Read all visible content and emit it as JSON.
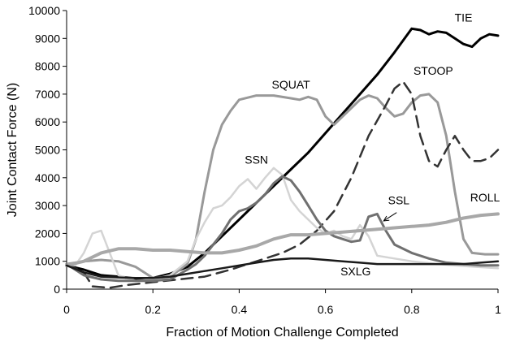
{
  "chart_data": {
    "type": "line",
    "title": "",
    "xlabel": "Fraction of Motion Challenge Completed",
    "ylabel": "Joint Contact Force (N)",
    "xlim": [
      0,
      1
    ],
    "ylim": [
      0,
      10000
    ],
    "xticks": [
      0,
      0.2,
      0.4,
      0.6,
      0.8,
      1
    ],
    "yticks": [
      0,
      1000,
      2000,
      3000,
      4000,
      5000,
      6000,
      7000,
      8000,
      9000,
      10000
    ],
    "xtick_labels": [
      "0",
      "0.2",
      "0.4",
      "0.6",
      "0.8",
      "1"
    ],
    "ytick_labels": [
      "0",
      "1000",
      "2000",
      "3000",
      "4000",
      "5000",
      "6000",
      "7000",
      "8000",
      "9000",
      "10000"
    ],
    "grid": false,
    "legend": "none (direct labels)",
    "series": [
      {
        "name": "TIE",
        "color": "#000000",
        "width": 3,
        "dash": "",
        "points": [
          [
            0,
            850
          ],
          [
            0.04,
            700
          ],
          [
            0.08,
            500
          ],
          [
            0.12,
            450
          ],
          [
            0.16,
            380
          ],
          [
            0.2,
            400
          ],
          [
            0.24,
            550
          ],
          [
            0.28,
            800
          ],
          [
            0.32,
            1300
          ],
          [
            0.36,
            1900
          ],
          [
            0.4,
            2500
          ],
          [
            0.44,
            3100
          ],
          [
            0.48,
            3700
          ],
          [
            0.52,
            4300
          ],
          [
            0.56,
            4900
          ],
          [
            0.6,
            5600
          ],
          [
            0.64,
            6300
          ],
          [
            0.68,
            7000
          ],
          [
            0.72,
            7700
          ],
          [
            0.76,
            8500
          ],
          [
            0.8,
            9350
          ],
          [
            0.82,
            9300
          ],
          [
            0.84,
            9150
          ],
          [
            0.86,
            9250
          ],
          [
            0.88,
            9200
          ],
          [
            0.9,
            9000
          ],
          [
            0.92,
            8800
          ],
          [
            0.94,
            8700
          ],
          [
            0.96,
            9000
          ],
          [
            0.98,
            9150
          ],
          [
            1,
            9100
          ]
        ]
      },
      {
        "name": "SQUAT",
        "color": "#999999",
        "width": 3,
        "dash": "",
        "points": [
          [
            0,
            900
          ],
          [
            0.04,
            1000
          ],
          [
            0.08,
            1050
          ],
          [
            0.12,
            1000
          ],
          [
            0.16,
            800
          ],
          [
            0.2,
            400
          ],
          [
            0.24,
            450
          ],
          [
            0.28,
            900
          ],
          [
            0.3,
            1800
          ],
          [
            0.32,
            3500
          ],
          [
            0.34,
            5000
          ],
          [
            0.36,
            5900
          ],
          [
            0.38,
            6400
          ],
          [
            0.4,
            6800
          ],
          [
            0.44,
            6950
          ],
          [
            0.48,
            6950
          ],
          [
            0.52,
            6850
          ],
          [
            0.54,
            6800
          ],
          [
            0.56,
            6900
          ],
          [
            0.58,
            6800
          ],
          [
            0.6,
            6200
          ],
          [
            0.62,
            5900
          ],
          [
            0.64,
            6200
          ],
          [
            0.66,
            6500
          ],
          [
            0.68,
            6800
          ],
          [
            0.7,
            6950
          ],
          [
            0.72,
            6850
          ],
          [
            0.74,
            6500
          ],
          [
            0.76,
            6200
          ],
          [
            0.78,
            6300
          ],
          [
            0.8,
            6700
          ],
          [
            0.82,
            6950
          ],
          [
            0.84,
            7000
          ],
          [
            0.86,
            6700
          ],
          [
            0.88,
            5500
          ],
          [
            0.9,
            3500
          ],
          [
            0.92,
            1800
          ],
          [
            0.94,
            1300
          ],
          [
            0.97,
            1250
          ],
          [
            1,
            1250
          ]
        ]
      },
      {
        "name": "STOOP",
        "color": "#333333",
        "width": 2.5,
        "dash": "14,8",
        "points": [
          [
            0,
            900
          ],
          [
            0.04,
            600
          ],
          [
            0.06,
            100
          ],
          [
            0.1,
            50
          ],
          [
            0.14,
            150
          ],
          [
            0.2,
            250
          ],
          [
            0.26,
            350
          ],
          [
            0.32,
            450
          ],
          [
            0.38,
            700
          ],
          [
            0.42,
            900
          ],
          [
            0.46,
            1100
          ],
          [
            0.5,
            1300
          ],
          [
            0.54,
            1600
          ],
          [
            0.58,
            2100
          ],
          [
            0.62,
            2800
          ],
          [
            0.66,
            4000
          ],
          [
            0.7,
            5500
          ],
          [
            0.74,
            6600
          ],
          [
            0.76,
            7200
          ],
          [
            0.78,
            7450
          ],
          [
            0.8,
            7000
          ],
          [
            0.82,
            5500
          ],
          [
            0.84,
            4600
          ],
          [
            0.86,
            4400
          ],
          [
            0.88,
            5000
          ],
          [
            0.9,
            5500
          ],
          [
            0.92,
            5000
          ],
          [
            0.94,
            4600
          ],
          [
            0.96,
            4600
          ],
          [
            0.98,
            4700
          ],
          [
            1,
            5000
          ]
        ]
      },
      {
        "name": "SSN",
        "color": "#d4d4d4",
        "width": 2.5,
        "dash": "",
        "points": [
          [
            0,
            900
          ],
          [
            0.02,
            850
          ],
          [
            0.04,
            1300
          ],
          [
            0.06,
            2000
          ],
          [
            0.08,
            2100
          ],
          [
            0.1,
            1300
          ],
          [
            0.12,
            500
          ],
          [
            0.16,
            300
          ],
          [
            0.2,
            350
          ],
          [
            0.24,
            500
          ],
          [
            0.28,
            1000
          ],
          [
            0.3,
            1800
          ],
          [
            0.32,
            2400
          ],
          [
            0.34,
            2900
          ],
          [
            0.36,
            3000
          ],
          [
            0.38,
            3300
          ],
          [
            0.4,
            3700
          ],
          [
            0.42,
            3950
          ],
          [
            0.44,
            3600
          ],
          [
            0.46,
            4000
          ],
          [
            0.48,
            4350
          ],
          [
            0.5,
            4100
          ],
          [
            0.52,
            3200
          ],
          [
            0.54,
            2800
          ],
          [
            0.56,
            2500
          ],
          [
            0.58,
            2200
          ],
          [
            0.6,
            2000
          ],
          [
            0.62,
            2100
          ],
          [
            0.64,
            1900
          ],
          [
            0.66,
            1800
          ],
          [
            0.68,
            2300
          ],
          [
            0.7,
            1900
          ],
          [
            0.72,
            1200
          ],
          [
            0.76,
            1100
          ],
          [
            0.8,
            1000
          ],
          [
            0.86,
            900
          ],
          [
            0.9,
            850
          ],
          [
            0.95,
            800
          ],
          [
            1,
            750
          ]
        ]
      },
      {
        "name": "SSL",
        "color": "#707070",
        "width": 3,
        "dash": "",
        "points": [
          [
            0,
            900
          ],
          [
            0.04,
            500
          ],
          [
            0.08,
            350
          ],
          [
            0.12,
            300
          ],
          [
            0.16,
            300
          ],
          [
            0.2,
            300
          ],
          [
            0.24,
            350
          ],
          [
            0.28,
            700
          ],
          [
            0.3,
            900
          ],
          [
            0.32,
            1200
          ],
          [
            0.34,
            1600
          ],
          [
            0.36,
            2000
          ],
          [
            0.38,
            2500
          ],
          [
            0.4,
            2800
          ],
          [
            0.42,
            2900
          ],
          [
            0.44,
            3100
          ],
          [
            0.46,
            3400
          ],
          [
            0.48,
            3800
          ],
          [
            0.5,
            4050
          ],
          [
            0.52,
            3900
          ],
          [
            0.54,
            3500
          ],
          [
            0.56,
            3000
          ],
          [
            0.58,
            2500
          ],
          [
            0.6,
            2100
          ],
          [
            0.62,
            1900
          ],
          [
            0.64,
            1800
          ],
          [
            0.66,
            1700
          ],
          [
            0.68,
            1750
          ],
          [
            0.7,
            2600
          ],
          [
            0.72,
            2700
          ],
          [
            0.74,
            2100
          ],
          [
            0.76,
            1600
          ],
          [
            0.8,
            1300
          ],
          [
            0.84,
            1100
          ],
          [
            0.88,
            950
          ],
          [
            0.92,
            900
          ],
          [
            0.96,
            850
          ],
          [
            1,
            850
          ]
        ]
      },
      {
        "name": "ROLL",
        "color": "#a8a8a8",
        "width": 4,
        "dash": "",
        "points": [
          [
            0,
            850
          ],
          [
            0.04,
            1000
          ],
          [
            0.08,
            1300
          ],
          [
            0.12,
            1450
          ],
          [
            0.16,
            1450
          ],
          [
            0.2,
            1400
          ],
          [
            0.24,
            1400
          ],
          [
            0.28,
            1350
          ],
          [
            0.32,
            1300
          ],
          [
            0.36,
            1300
          ],
          [
            0.4,
            1400
          ],
          [
            0.44,
            1550
          ],
          [
            0.48,
            1800
          ],
          [
            0.52,
            1950
          ],
          [
            0.56,
            1950
          ],
          [
            0.6,
            2000
          ],
          [
            0.64,
            2050
          ],
          [
            0.68,
            2100
          ],
          [
            0.72,
            2150
          ],
          [
            0.76,
            2200
          ],
          [
            0.8,
            2250
          ],
          [
            0.84,
            2300
          ],
          [
            0.88,
            2400
          ],
          [
            0.92,
            2550
          ],
          [
            0.96,
            2650
          ],
          [
            1,
            2700
          ]
        ]
      },
      {
        "name": "SXLG",
        "color": "#1a1a1a",
        "width": 2.5,
        "dash": "",
        "points": [
          [
            0,
            850
          ],
          [
            0.04,
            600
          ],
          [
            0.08,
            450
          ],
          [
            0.12,
            420
          ],
          [
            0.16,
            400
          ],
          [
            0.2,
            400
          ],
          [
            0.24,
            450
          ],
          [
            0.28,
            550
          ],
          [
            0.32,
            650
          ],
          [
            0.36,
            750
          ],
          [
            0.4,
            850
          ],
          [
            0.44,
            950
          ],
          [
            0.48,
            1050
          ],
          [
            0.52,
            1100
          ],
          [
            0.56,
            1100
          ],
          [
            0.6,
            1050
          ],
          [
            0.64,
            1000
          ],
          [
            0.68,
            950
          ],
          [
            0.72,
            900
          ],
          [
            0.76,
            900
          ],
          [
            0.8,
            900
          ],
          [
            0.84,
            900
          ],
          [
            0.88,
            900
          ],
          [
            0.92,
            900
          ],
          [
            0.96,
            950
          ],
          [
            1,
            1000
          ]
        ]
      }
    ],
    "annotations": [
      {
        "text": "TIE",
        "x": 0.92,
        "y": 9600,
        "anchor": "middle"
      },
      {
        "text": "SQUAT",
        "x": 0.52,
        "y": 7200,
        "anchor": "middle"
      },
      {
        "text": "STOOP",
        "x": 0.85,
        "y": 7700,
        "anchor": "middle"
      },
      {
        "text": "SSN",
        "x": 0.44,
        "y": 4500,
        "anchor": "middle"
      },
      {
        "text": "SSL",
        "x": 0.77,
        "y": 3050,
        "anchor": "middle"
      },
      {
        "text": "ROLL",
        "x": 0.97,
        "y": 3150,
        "anchor": "middle"
      },
      {
        "text": "SXLG",
        "x": 0.67,
        "y": 500,
        "anchor": "middle"
      }
    ],
    "arrow": {
      "from": [
        0.765,
        2750
      ],
      "to": [
        0.735,
        2450
      ]
    }
  }
}
